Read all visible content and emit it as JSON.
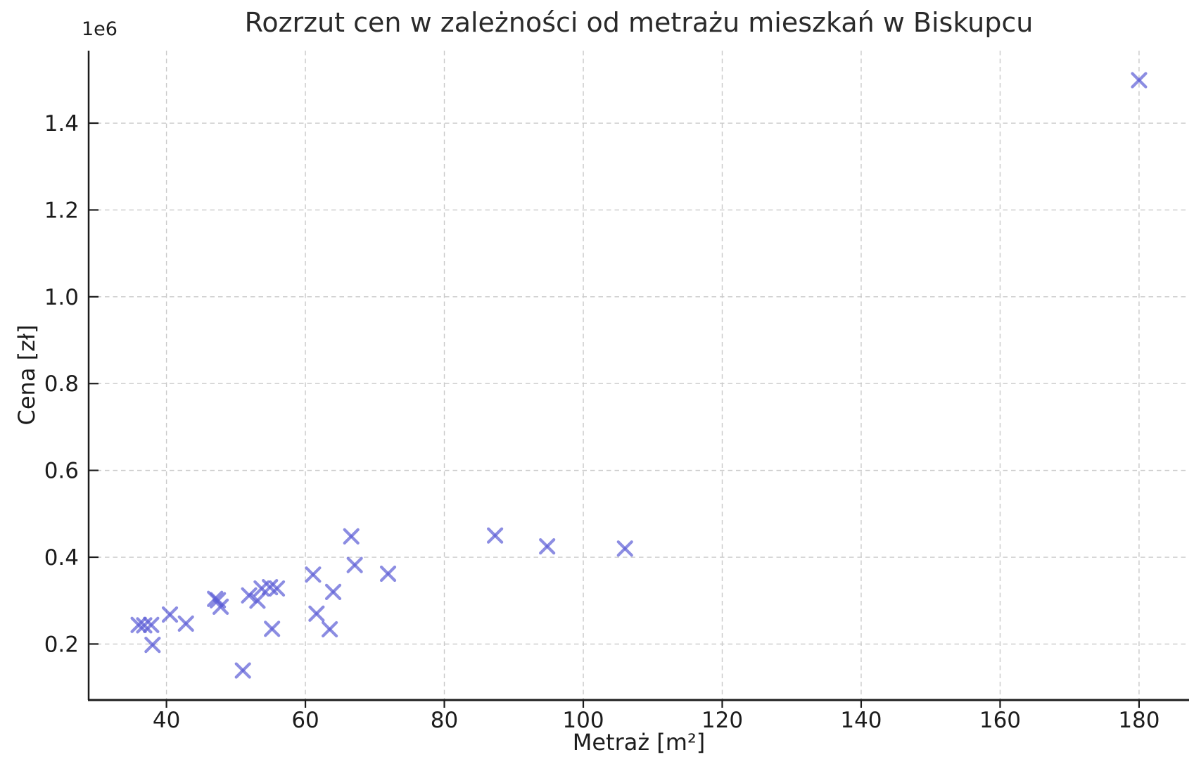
{
  "chart_data": {
    "type": "scatter",
    "title": "Rozrzut cen w zależności od metrażu mieszkań w Biskupcu",
    "xlabel": "Metraż [m²]",
    "ylabel": "Cena [zł]",
    "y_offset_label": "1e6",
    "xlim": [
      28.8,
      187.2
    ],
    "ylim": [
      71000,
      1567000
    ],
    "xticks": [
      40,
      60,
      80,
      100,
      120,
      140,
      160,
      180
    ],
    "xtick_labels": [
      "40",
      "60",
      "80",
      "100",
      "120",
      "140",
      "160",
      "180"
    ],
    "yticks": [
      200000,
      400000,
      600000,
      800000,
      1000000,
      1200000,
      1400000
    ],
    "ytick_labels": [
      "0.2",
      "0.4",
      "0.6",
      "0.8",
      "1.0",
      "1.2",
      "1.4"
    ],
    "grid": true,
    "legend": null,
    "marker": {
      "shape": "x",
      "color": "#5b5cd6",
      "opacity": 0.7,
      "size": 19,
      "stroke_width": 4.2
    },
    "points": [
      [
        36,
        244000
      ],
      [
        36.8,
        243000
      ],
      [
        37.8,
        244000
      ],
      [
        38,
        198000
      ],
      [
        40.5,
        268000
      ],
      [
        42.8,
        247000
      ],
      [
        47,
        304000
      ],
      [
        47.4,
        301000
      ],
      [
        47.8,
        286000
      ],
      [
        51,
        139000
      ],
      [
        51.9,
        312000
      ],
      [
        53.1,
        300000
      ],
      [
        53.7,
        328000
      ],
      [
        54.9,
        331000
      ],
      [
        55.2,
        235000
      ],
      [
        55.9,
        328000
      ],
      [
        61.1,
        360000
      ],
      [
        61.6,
        270000
      ],
      [
        63.5,
        234000
      ],
      [
        64,
        320000
      ],
      [
        66.6,
        448000
      ],
      [
        67.1,
        382000
      ],
      [
        71.9,
        362000
      ],
      [
        87.3,
        450000
      ],
      [
        94.8,
        425000
      ],
      [
        106,
        420000
      ],
      [
        180,
        1499000
      ]
    ],
    "grid_color": "#c9c9c9",
    "axis_color": "#1c1c1c"
  }
}
